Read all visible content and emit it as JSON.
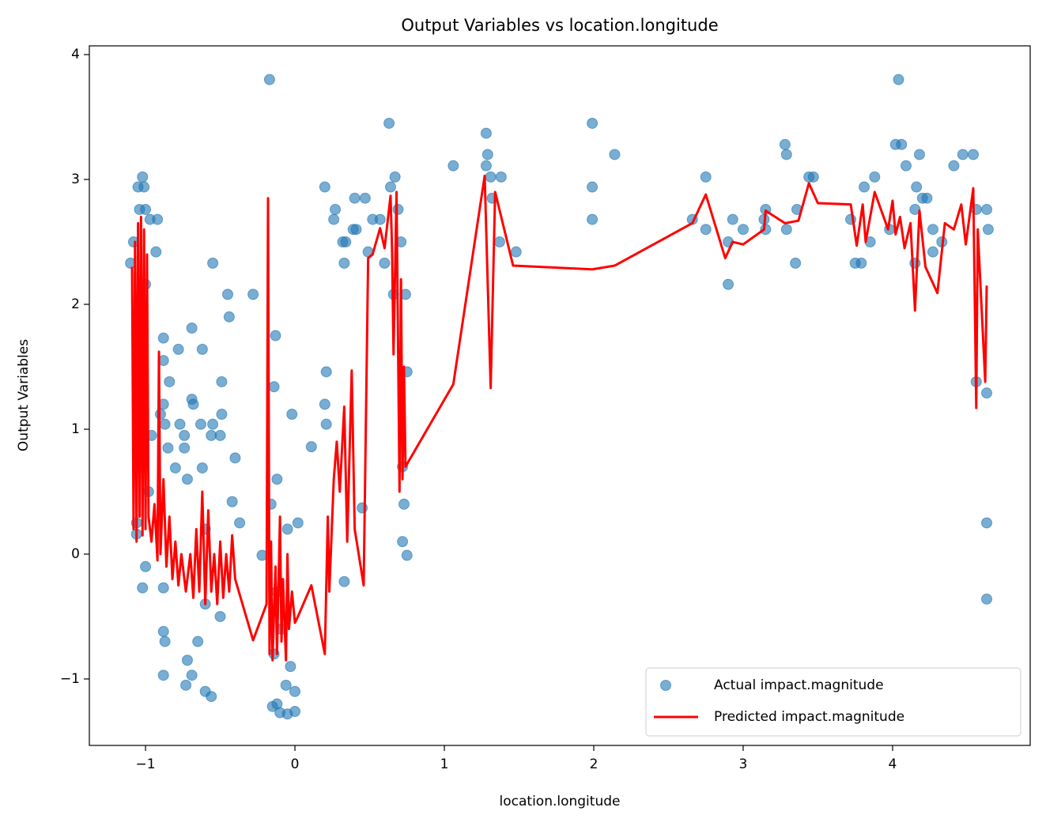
{
  "chart_data": {
    "type": "scatter",
    "title": "Output Variables vs location.longitude",
    "xlabel": "location.longitude",
    "ylabel": "Output Variables",
    "xlim": [
      -1.376,
      4.921
    ],
    "ylim": [
      -1.532,
      4.07
    ],
    "xticks": [
      {
        "value": -1,
        "label": "−1"
      },
      0,
      1,
      2,
      3,
      4
    ],
    "yticks": [
      {
        "value": -1,
        "label": "−1"
      },
      0,
      1,
      2,
      3,
      4
    ],
    "legend": "lower right",
    "series": [
      {
        "name": "Actual impact.magnitude",
        "type": "scatter",
        "color": "#1f77b4",
        "x": [
          -0.17,
          4.04,
          0.63,
          1.99,
          1.28,
          3.28,
          4.02,
          4.06,
          1.29,
          2.14,
          3.29,
          4.18,
          4.47,
          4.54,
          1.06,
          1.28,
          4.09,
          4.41,
          -1.02,
          0.67,
          1.31,
          1.38,
          2.75,
          3.44,
          3.47,
          3.88,
          -1.05,
          -1.01,
          0.2,
          0.64,
          1.99,
          3.81,
          4.16,
          0.4,
          0.47,
          1.32,
          4.2,
          4.23,
          -1.04,
          -1.0,
          0.27,
          0.69,
          3.15,
          3.36,
          4.15,
          4.56,
          4.63,
          -0.97,
          -0.92,
          0.26,
          0.52,
          0.57,
          1.99,
          2.66,
          2.93,
          3.14,
          3.72,
          0.39,
          0.41,
          2.75,
          3.0,
          3.15,
          3.29,
          3.98,
          4.27,
          4.64,
          -1.08,
          0.32,
          0.34,
          0.71,
          1.37,
          2.9,
          3.85,
          4.33,
          -0.93,
          0.49,
          1.48,
          4.27,
          -1.1,
          -0.55,
          0.33,
          0.6,
          3.35,
          3.75,
          3.79,
          4.15,
          2.9,
          -1.0,
          -0.45,
          -0.28,
          0.66,
          0.74,
          -0.44,
          -0.13,
          -0.69,
          -0.88,
          -0.78,
          -0.62,
          -0.88,
          0.21,
          0.75,
          -0.84,
          -0.49,
          4.56,
          -0.14,
          4.63,
          -0.69,
          -0.88,
          -0.68,
          0.2,
          -0.9,
          -0.49,
          -0.02,
          -0.87,
          -0.77,
          -0.63,
          -0.55,
          0.21,
          -0.96,
          -0.74,
          -0.56,
          -0.5,
          0.11,
          -0.4,
          -0.85,
          -0.74,
          -1.05,
          -0.8,
          -0.62,
          -0.12,
          -0.98,
          -0.72,
          -0.42,
          -0.16,
          0.45,
          -1.06,
          -0.37,
          0.02,
          -0.6,
          -1.06,
          -0.22,
          0.75,
          -1.0,
          0.33,
          -1.02,
          -0.88,
          4.63,
          -0.88,
          -0.87,
          -0.72,
          -0.69,
          -0.88,
          -0.73,
          -0.6,
          -0.56,
          -0.06,
          0.0,
          -0.12,
          -0.1,
          -0.05,
          -0.15,
          0.0,
          0.72,
          0.73,
          0.72,
          4.63,
          -0.05,
          -0.12,
          -0.6,
          -0.5,
          -0.65,
          -0.09,
          -0.14,
          -0.03
        ],
        "values": [
          3.8,
          3.8,
          3.45,
          3.45,
          3.37,
          3.28,
          3.28,
          3.28,
          3.2,
          3.2,
          3.2,
          3.2,
          3.2,
          3.2,
          3.11,
          3.11,
          3.11,
          3.11,
          3.02,
          3.02,
          3.02,
          3.02,
          3.02,
          3.02,
          3.02,
          3.02,
          2.94,
          2.94,
          2.94,
          2.94,
          2.94,
          2.94,
          2.94,
          2.85,
          2.85,
          2.85,
          2.85,
          2.85,
          2.76,
          2.76,
          2.76,
          2.76,
          2.76,
          2.76,
          2.76,
          2.76,
          2.76,
          2.68,
          2.68,
          2.68,
          2.68,
          2.68,
          2.68,
          2.68,
          2.68,
          2.68,
          2.68,
          2.6,
          2.6,
          2.6,
          2.6,
          2.6,
          2.6,
          2.6,
          2.6,
          2.6,
          2.5,
          2.5,
          2.5,
          2.5,
          2.5,
          2.5,
          2.5,
          2.5,
          2.42,
          2.42,
          2.42,
          2.42,
          2.33,
          2.33,
          2.33,
          2.33,
          2.33,
          2.33,
          2.33,
          2.33,
          2.16,
          2.16,
          2.08,
          2.08,
          2.08,
          2.08,
          1.9,
          1.75,
          1.81,
          1.73,
          1.64,
          1.64,
          1.55,
          1.46,
          1.46,
          1.38,
          1.38,
          1.38,
          1.34,
          1.29,
          1.24,
          1.2,
          1.2,
          1.2,
          1.12,
          1.12,
          1.12,
          1.04,
          1.04,
          1.04,
          1.04,
          1.04,
          0.95,
          0.95,
          0.95,
          0.95,
          0.86,
          0.77,
          0.85,
          0.85,
          0.69,
          0.69,
          0.69,
          0.6,
          0.5,
          0.6,
          0.42,
          0.4,
          0.37,
          0.25,
          0.25,
          0.25,
          0.2,
          0.16,
          -0.01,
          -0.01,
          -0.1,
          -0.22,
          -0.27,
          -0.27,
          -0.36,
          -0.62,
          -0.7,
          -0.85,
          -0.97,
          -0.97,
          -1.05,
          -1.1,
          -1.14,
          -1.05,
          -1.1,
          -1.2,
          -1.27,
          -1.28,
          -1.22,
          -1.26,
          0.7,
          0.4,
          0.1,
          0.25,
          0.2,
          -0.3,
          -0.4,
          -0.5,
          -0.7,
          -0.6,
          -0.8,
          -0.9
        ]
      },
      {
        "name": "Predicted impact.magnitude",
        "type": "line",
        "color": "#ff0000",
        "x": [
          -1.09,
          -1.08,
          -1.07,
          -1.06,
          -1.05,
          -1.04,
          -1.03,
          -1.02,
          -1.01,
          -1.0,
          -0.99,
          -0.98,
          -0.96,
          -0.94,
          -0.92,
          -0.91,
          -0.9,
          -0.88,
          -0.86,
          -0.84,
          -0.82,
          -0.8,
          -0.78,
          -0.76,
          -0.73,
          -0.7,
          -0.68,
          -0.66,
          -0.64,
          -0.62,
          -0.6,
          -0.58,
          -0.56,
          -0.54,
          -0.52,
          -0.5,
          -0.48,
          -0.46,
          -0.44,
          -0.42,
          -0.4,
          -0.28,
          -0.19,
          -0.18,
          -0.17,
          -0.16,
          -0.15,
          -0.13,
          -0.12,
          -0.1,
          -0.09,
          -0.08,
          -0.06,
          -0.05,
          -0.04,
          -0.02,
          0.0,
          0.02,
          0.11,
          0.2,
          0.22,
          0.23,
          0.26,
          0.28,
          0.3,
          0.33,
          0.35,
          0.38,
          0.4,
          0.46,
          0.49,
          0.52,
          0.57,
          0.6,
          0.64,
          0.65,
          0.66,
          0.68,
          0.7,
          0.71,
          0.72,
          0.73,
          0.74,
          1.06,
          1.27,
          1.31,
          1.34,
          1.46,
          1.99,
          2.14,
          2.66,
          2.75,
          2.88,
          2.93,
          3.0,
          3.14,
          3.15,
          3.28,
          3.37,
          3.44,
          3.5,
          3.72,
          3.76,
          3.8,
          3.82,
          3.88,
          3.97,
          4.0,
          4.02,
          4.05,
          4.08,
          4.12,
          4.15,
          4.18,
          4.22,
          4.3,
          4.35,
          4.41,
          4.46,
          4.49,
          4.54,
          4.56,
          4.57,
          4.62,
          4.63
        ],
        "values": [
          2.3,
          0.2,
          2.5,
          0.1,
          2.65,
          0.3,
          2.7,
          0.15,
          2.6,
          0.2,
          2.4,
          0.3,
          0.1,
          0.4,
          -0.05,
          1.62,
          0.0,
          0.6,
          -0.1,
          0.3,
          -0.2,
          0.1,
          -0.25,
          0.0,
          -0.3,
          0.0,
          -0.35,
          0.2,
          -0.3,
          0.5,
          -0.4,
          0.35,
          -0.3,
          0.0,
          -0.4,
          0.1,
          -0.35,
          0.0,
          -0.3,
          0.15,
          -0.2,
          -0.69,
          -0.4,
          2.85,
          -0.8,
          0.1,
          -0.85,
          -0.1,
          -0.8,
          0.3,
          -0.7,
          -0.2,
          -0.85,
          0.0,
          -0.6,
          -0.3,
          -0.55,
          -0.5,
          -0.25,
          -0.8,
          0.3,
          -0.3,
          0.6,
          0.9,
          0.5,
          1.18,
          0.1,
          1.47,
          0.2,
          -0.25,
          2.37,
          2.4,
          2.61,
          2.45,
          2.87,
          2.44,
          1.6,
          2.9,
          0.5,
          2.2,
          0.6,
          1.5,
          0.7,
          1.36,
          3.03,
          1.33,
          2.9,
          2.31,
          2.28,
          2.31,
          2.65,
          2.88,
          2.37,
          2.5,
          2.48,
          2.6,
          2.75,
          2.65,
          2.67,
          2.97,
          2.81,
          2.8,
          2.47,
          2.8,
          2.5,
          2.9,
          2.6,
          2.83,
          2.56,
          2.7,
          2.45,
          2.65,
          1.95,
          2.75,
          2.3,
          2.09,
          2.65,
          2.6,
          2.8,
          2.48,
          2.93,
          1.17,
          2.6,
          1.38,
          2.15
        ]
      }
    ]
  }
}
